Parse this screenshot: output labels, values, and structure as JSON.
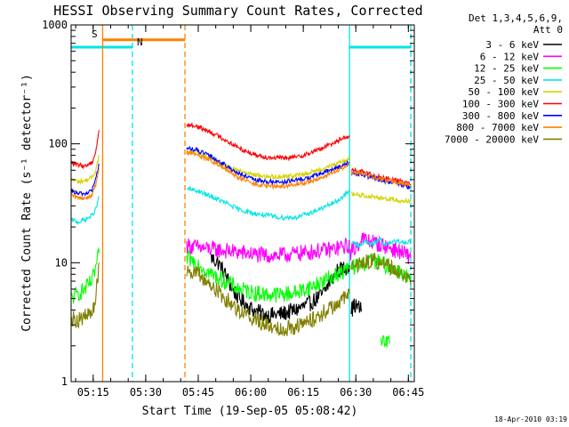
{
  "chart_data": {
    "type": "line",
    "title": "HESSI Observing Summary Count Rates, Corrected",
    "xlabel": "Start Time (19-Sep-05 05:08:42)",
    "ylabel": "Corrected Count Rate (s⁻¹ detector⁻¹)",
    "yscale": "log",
    "ylim": [
      1,
      1000
    ],
    "xlim_minutes_from_start": [
      0,
      98
    ],
    "x_ticks": [
      {
        "label": "05:15",
        "t": 6.3
      },
      {
        "label": "05:30",
        "t": 21.3
      },
      {
        "label": "05:45",
        "t": 36.3
      },
      {
        "label": "06:00",
        "t": 51.3
      },
      {
        "label": "06:15",
        "t": 66.3
      },
      {
        "label": "06:30",
        "t": 81.3
      },
      {
        "label": "06:45",
        "t": 96.3
      }
    ],
    "y_ticks": [
      {
        "label": "1",
        "v": 1
      },
      {
        "label": "10",
        "v": 10
      },
      {
        "label": "100",
        "v": 100
      },
      {
        "label": "1000",
        "v": 1000
      }
    ],
    "legend": {
      "placement": "right",
      "header": [
        "Det 1,3,4,5,6,9,",
        "Att 0"
      ]
    },
    "annotations": [
      {
        "label": "S",
        "color": "#ff8000"
      },
      {
        "label": "N",
        "color": "#00e5e5"
      }
    ],
    "flag_bars": [
      {
        "color": "#00e5e5",
        "value": 650,
        "ranges": [
          [
            0,
            17.5
          ],
          [
            79.5,
            97
          ]
        ]
      },
      {
        "color": "#ff8000",
        "value": 750,
        "ranges": [
          [
            9,
            32.5
          ]
        ]
      }
    ],
    "vlines": [
      {
        "t": 9,
        "color": "#ff8000",
        "style": "solid"
      },
      {
        "t": 17.5,
        "color": "#00e5e5",
        "style": "dashed"
      },
      {
        "t": 32.5,
        "color": "#ff8000",
        "style": "dashed"
      },
      {
        "t": 79.5,
        "color": "#00e5e5",
        "style": "solid"
      },
      {
        "t": 97,
        "color": "#00e5e5",
        "style": "dashed"
      }
    ],
    "series": [
      {
        "name": "3 - 6 keV",
        "color": "#000000",
        "segments": [
          {
            "t": [
              40,
              42,
              44,
              46,
              48,
              52,
              56,
              60,
              64,
              68,
              72,
              74,
              76,
              78,
              79.5
            ],
            "v": [
              11,
              10,
              8,
              6,
              5,
              4,
              3.6,
              3.7,
              4,
              4.5,
              5.5,
              7,
              8.5,
              9,
              9.5
            ]
          },
          {
            "t": [
              80,
              81,
              82,
              83
            ],
            "v": [
              4,
              4.4,
              4.2,
              4
            ]
          }
        ]
      },
      {
        "name": "6 - 12 keV",
        "color": "#ff00ff",
        "segments": [
          {
            "t": [
              33,
              36,
              40,
              45,
              50,
              55,
              60,
              65,
              70,
              75,
              79.5
            ],
            "v": [
              14,
              13.5,
              13,
              12.5,
              12,
              11.5,
              11.5,
              12,
              12.5,
              13,
              14
            ]
          },
          {
            "t": [
              79.5,
              81,
              83,
              86,
              89,
              92,
              95,
              97
            ],
            "v": [
              12,
              13,
              16,
              15,
              14,
              13,
              12,
              11
            ]
          }
        ]
      },
      {
        "name": "12 - 25 keV",
        "color": "#00ff00",
        "segments": [
          {
            "t": [
              0,
              2,
              4,
              6,
              7,
              8
            ],
            "v": [
              5,
              5.5,
              6,
              7,
              9,
              12
            ]
          },
          {
            "t": [
              33,
              36,
              40,
              44,
              48,
              52,
              56,
              60,
              64,
              68,
              72,
              76,
              79.5
            ],
            "v": [
              11,
              10,
              8,
              7,
              6,
              5.6,
              5.4,
              5.4,
              5.6,
              6.2,
              7,
              8,
              9
            ]
          },
          {
            "t": [
              80,
              82,
              84,
              86,
              88,
              90,
              92,
              95,
              97
            ],
            "v": [
              9,
              9.5,
              10,
              10.5,
              10,
              9.5,
              9,
              8,
              7
            ]
          },
          {
            "t": [
              88.5,
              91
            ],
            "v": [
              2.1,
              2.1
            ]
          }
        ]
      },
      {
        "name": "25 - 50 keV",
        "color": "#00e5e5",
        "segments": [
          {
            "t": [
              0,
              2,
              4,
              6,
              7,
              8
            ],
            "v": [
              23,
              22,
              23,
              25,
              28,
              36
            ]
          },
          {
            "t": [
              33,
              36,
              40,
              44,
              48,
              52,
              56,
              60,
              64,
              68,
              72,
              76,
              79.5
            ],
            "v": [
              42,
              40,
              36,
              32,
              28,
              26,
              25,
              24,
              24,
              26,
              29,
              33,
              40
            ]
          },
          {
            "t": [
              80,
              82,
              84,
              86,
              88,
              90,
              92,
              95,
              97
            ],
            "v": [
              15,
              14,
              15,
              14,
              16,
              14,
              15,
              15,
              15
            ]
          }
        ]
      },
      {
        "name": "50 - 100 keV",
        "color": "#d4d400",
        "segments": [
          {
            "t": [
              0,
              2,
              4,
              6,
              7,
              8
            ],
            "v": [
              50,
              48,
              49,
              52,
              60,
              80
            ]
          },
          {
            "t": [
              33,
              36,
              40,
              44,
              48,
              52,
              56,
              60,
              64,
              68,
              72,
              76,
              79.5
            ],
            "v": [
              85,
              83,
              75,
              66,
              59,
              55,
              53,
              53,
              54,
              57,
              62,
              68,
              75
            ]
          },
          {
            "t": [
              80,
              83,
              86,
              89,
              92,
              95,
              97
            ],
            "v": [
              38,
              37,
              36,
              35,
              34,
              33,
              33
            ]
          }
        ]
      },
      {
        "name": "100 - 300 keV",
        "color": "#ff0000",
        "segments": [
          {
            "t": [
              0,
              2,
              4,
              6,
              7,
              8
            ],
            "v": [
              70,
              66,
              65,
              70,
              85,
              130
            ]
          },
          {
            "t": [
              33,
              36,
              40,
              44,
              48,
              52,
              56,
              60,
              64,
              68,
              72,
              76,
              79.5
            ],
            "v": [
              145,
              140,
              125,
              108,
              92,
              82,
              77,
              76,
              77,
              83,
              93,
              106,
              118
            ]
          },
          {
            "t": [
              80,
              83,
              86,
              89,
              92,
              95,
              97
            ],
            "v": [
              60,
              58,
              55,
              52,
              50,
              48,
              46
            ]
          }
        ]
      },
      {
        "name": "300 - 800 keV",
        "color": "#0000ff",
        "segments": [
          {
            "t": [
              0,
              2,
              4,
              6,
              7,
              8
            ],
            "v": [
              40,
              38,
              38,
              41,
              50,
              68
            ]
          },
          {
            "t": [
              33,
              36,
              40,
              44,
              48,
              52,
              56,
              60,
              64,
              68,
              72,
              76,
              79.5
            ],
            "v": [
              92,
              88,
              78,
              66,
              56,
              50,
              48,
              48,
              49,
              52,
              57,
              63,
              70
            ]
          },
          {
            "t": [
              80,
              83,
              86,
              89,
              92,
              95,
              97
            ],
            "v": [
              56,
              55,
              52,
              49,
              47,
              45,
              43
            ]
          }
        ]
      },
      {
        "name": "800 - 7000 keV",
        "color": "#ff8000",
        "segments": [
          {
            "t": [
              0,
              2,
              4,
              6,
              7,
              8
            ],
            "v": [
              37,
              35,
              35,
              37,
              45,
              62
            ]
          },
          {
            "t": [
              33,
              36,
              40,
              44,
              48,
              52,
              56,
              60,
              64,
              68,
              72,
              76,
              79.5
            ],
            "v": [
              85,
              81,
              72,
              61,
              52,
              46,
              44,
              44,
              45,
              48,
              53,
              60,
              67
            ]
          },
          {
            "t": [
              80,
              83,
              86,
              89,
              92,
              95,
              97
            ],
            "v": [
              58,
              56,
              53,
              50,
              48,
              46,
              45
            ]
          }
        ]
      },
      {
        "name": "7000 - 20000 keV",
        "color": "#808000",
        "segments": [
          {
            "t": [
              0,
              2,
              4,
              6,
              7,
              8
            ],
            "v": [
              3.4,
              3.3,
              3.5,
              3.8,
              5,
              10
            ]
          },
          {
            "t": [
              33,
              36,
              40,
              44,
              48,
              52,
              56,
              60,
              64,
              68,
              72,
              76,
              79.5
            ],
            "v": [
              9,
              8,
              6.5,
              5,
              4,
              3.4,
              3,
              2.8,
              2.9,
              3.2,
              3.8,
              4.5,
              5.5
            ]
          },
          {
            "t": [
              80,
              83,
              86,
              89,
              92,
              95,
              97
            ],
            "v": [
              9,
              10,
              10.5,
              10,
              9,
              8,
              6.5
            ]
          }
        ]
      }
    ]
  },
  "timestamp": "18-Apr-2010 03:19"
}
